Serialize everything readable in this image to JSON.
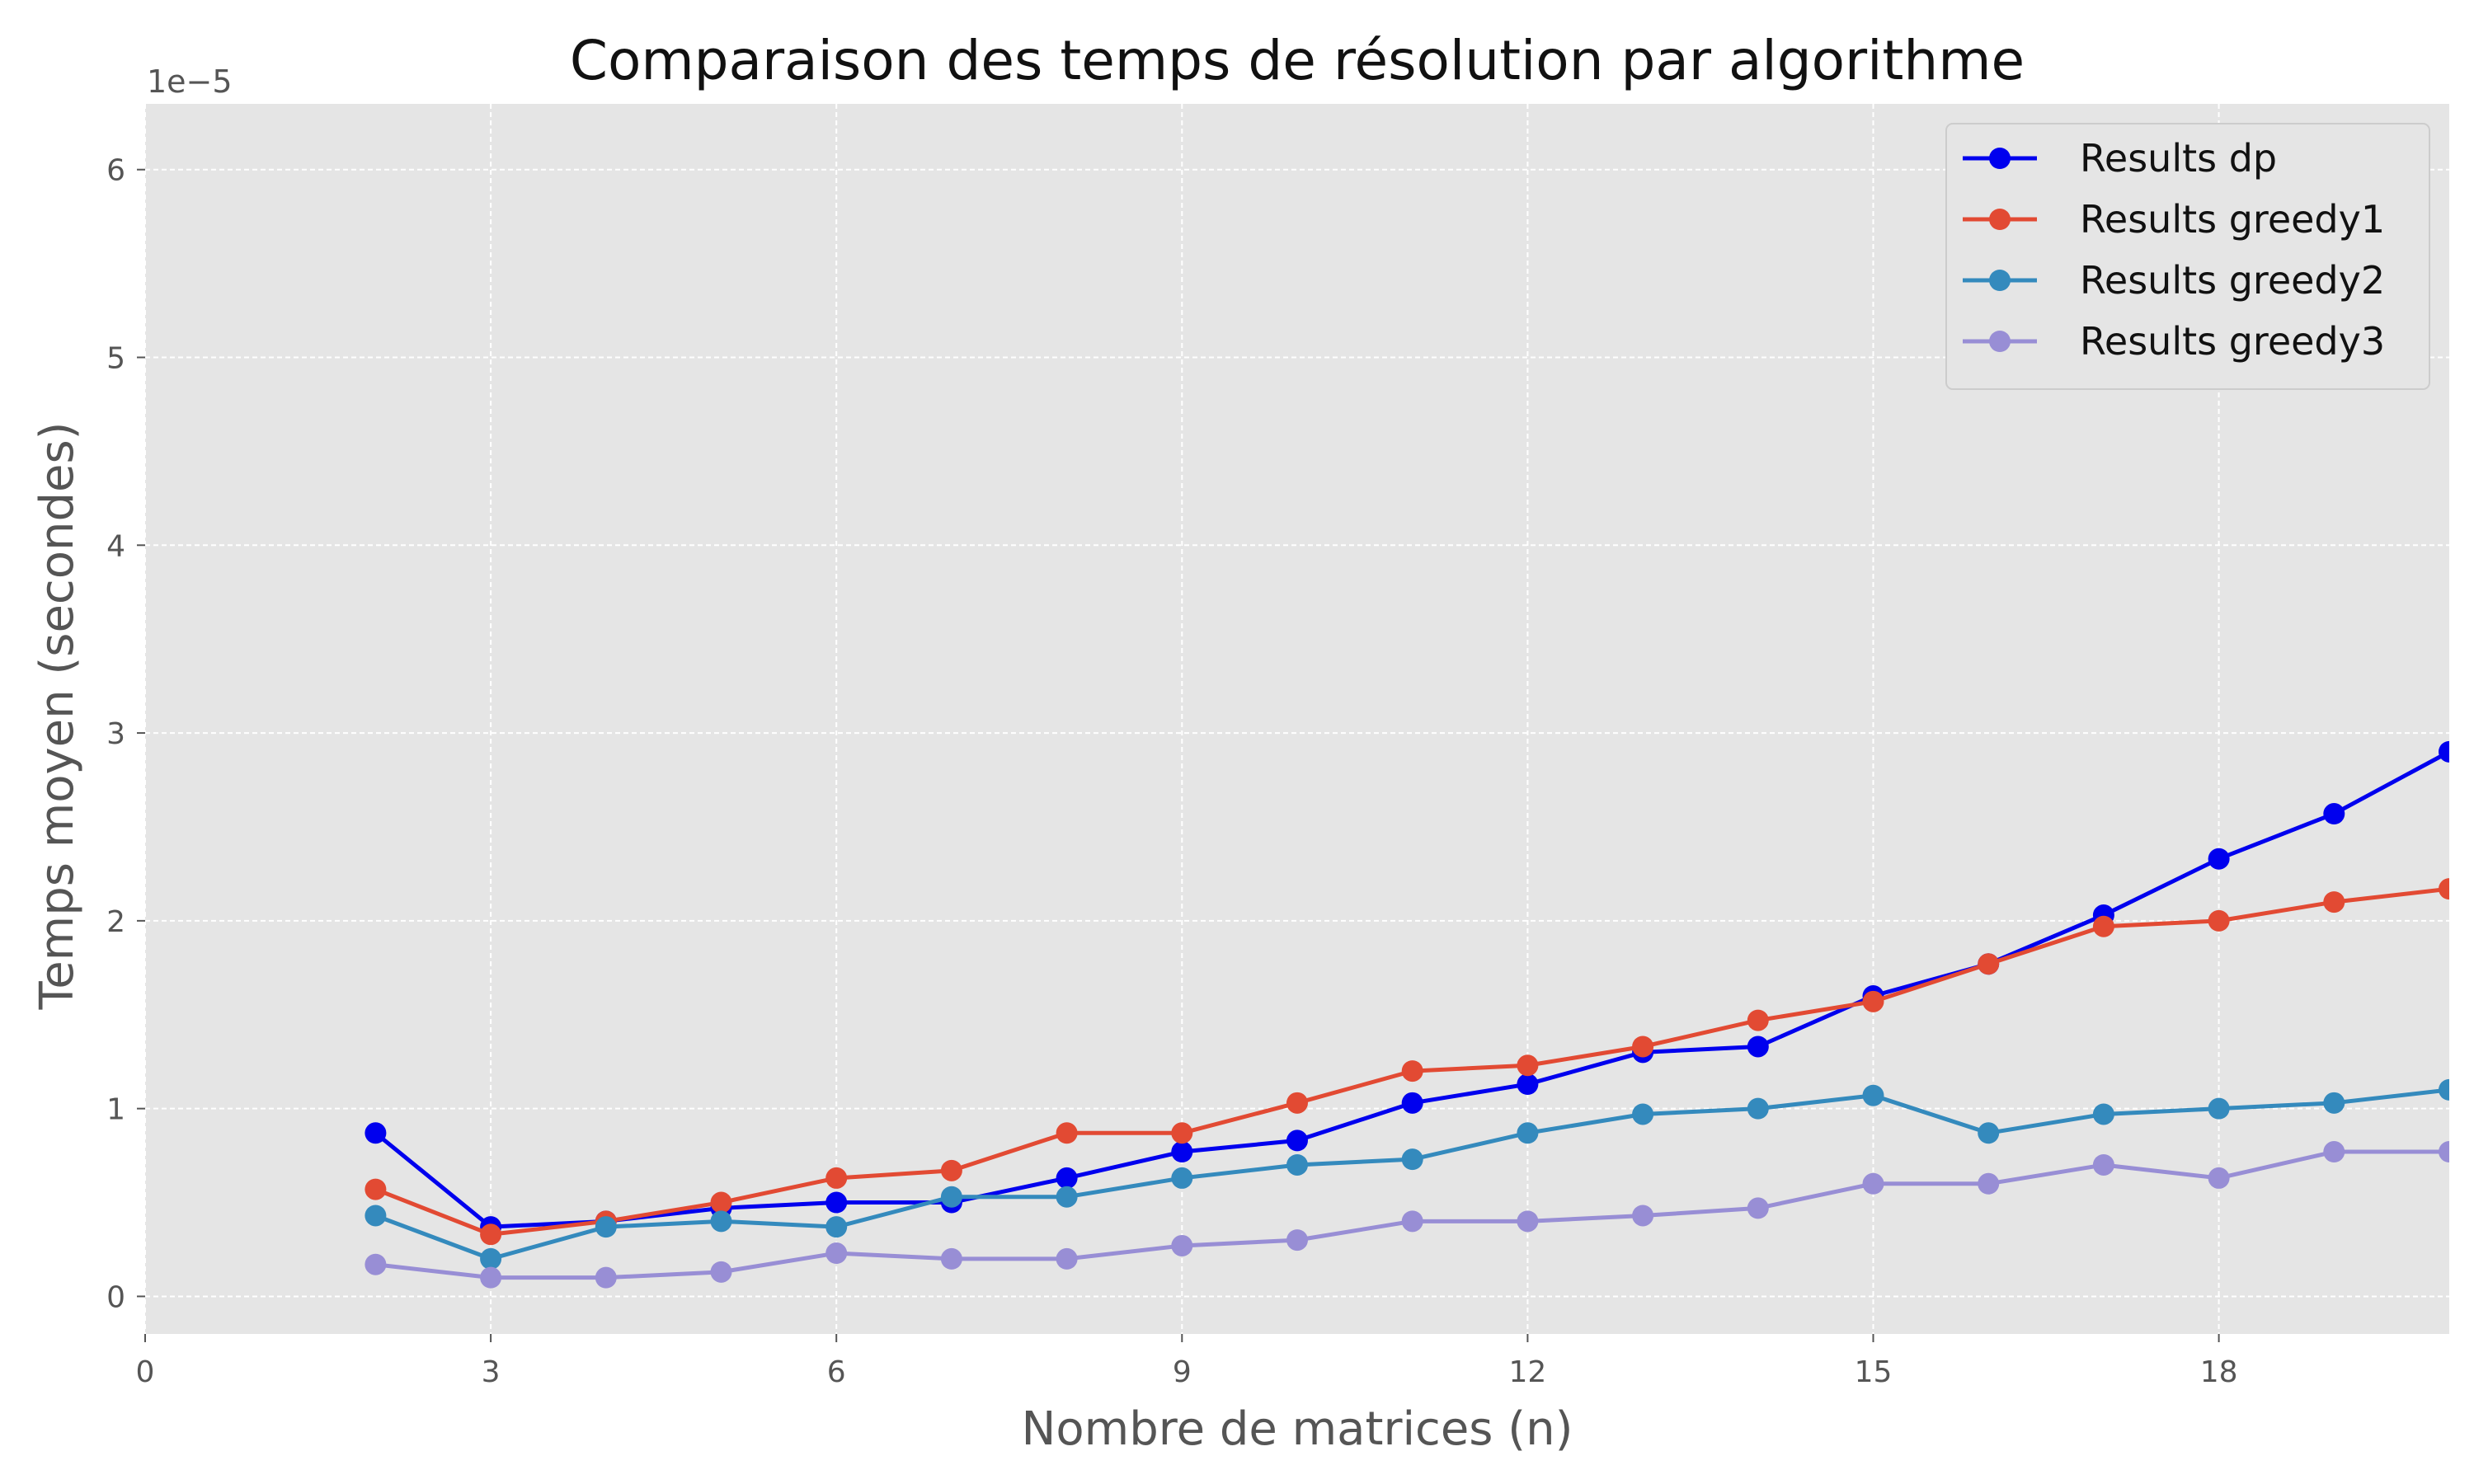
{
  "chart_data": {
    "type": "line",
    "title": "Comparaison des temps de résolution par algorithme",
    "xlabel": "Nombre de matrices (n)",
    "ylabel": "Temps moyen (secondes)",
    "y_offset_label": "1e−5",
    "x_ticks": [
      0,
      3,
      6,
      9,
      12,
      15,
      18
    ],
    "y_ticks": [
      0,
      1,
      2,
      3,
      4,
      5,
      6
    ],
    "xlim": [
      0,
      20
    ],
    "ylim": [
      -0.2,
      6.35
    ],
    "y_scale_factor": "1e-5",
    "grid": true,
    "legend_position": "top-right",
    "x": [
      2,
      3,
      4,
      5,
      6,
      7,
      8,
      9,
      10,
      11,
      12,
      13,
      14,
      15,
      16,
      17,
      18,
      19,
      20
    ],
    "series": [
      {
        "name": "Results dp",
        "color": "#0000ee",
        "values": [
          0.87,
          0.37,
          0.4,
          0.47,
          0.5,
          0.5,
          0.63,
          0.77,
          0.83,
          1.03,
          1.13,
          1.3,
          1.33,
          1.6,
          1.77,
          2.03,
          2.33,
          2.57,
          2.9
        ]
      },
      {
        "name": "Results greedy1",
        "color": "#e24a33",
        "values": [
          0.57,
          0.33,
          0.4,
          0.5,
          0.63,
          0.67,
          0.87,
          0.87,
          1.03,
          1.2,
          1.23,
          1.33,
          1.47,
          1.57,
          1.77,
          1.97,
          2.0,
          2.1,
          2.17
        ]
      },
      {
        "name": "Results greedy2",
        "color": "#348abd",
        "values": [
          0.43,
          0.2,
          0.37,
          0.4,
          0.37,
          0.53,
          0.53,
          0.63,
          0.7,
          0.73,
          0.87,
          0.97,
          1.0,
          1.07,
          0.87,
          0.97,
          1.0,
          1.03,
          1.1
        ]
      },
      {
        "name": "Results greedy3",
        "color": "#988ed5",
        "values": [
          0.17,
          0.1,
          0.1,
          0.13,
          0.23,
          0.2,
          0.2,
          0.27,
          0.3,
          0.4,
          0.4,
          0.43,
          0.47,
          0.6,
          0.6,
          0.7,
          0.63,
          0.77,
          0.77
        ]
      }
    ]
  },
  "colors": {
    "plot_background": "#e5e5e5",
    "grid": "#ffffff",
    "axis_text": "#555555"
  }
}
